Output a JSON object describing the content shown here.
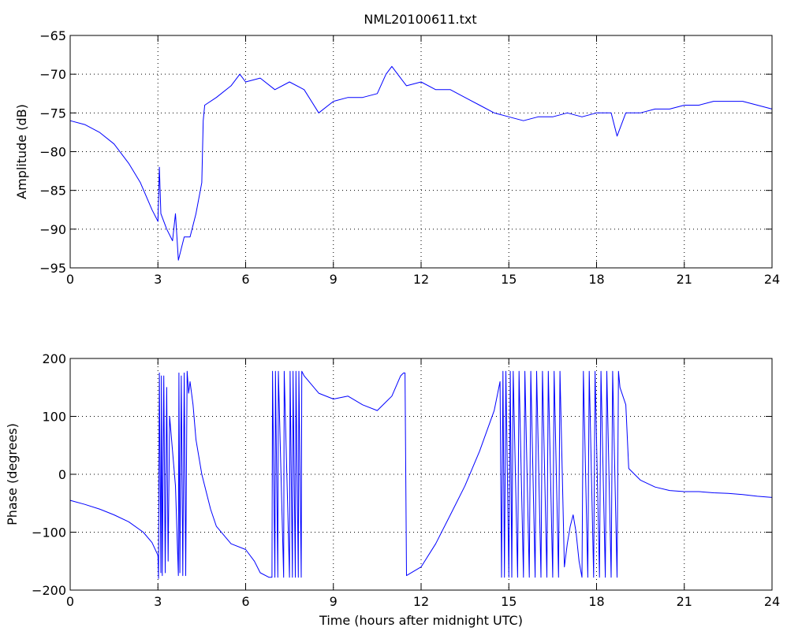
{
  "figure_title": "NML20100611.txt",
  "chart_data": [
    {
      "type": "line",
      "title": "NML20100611.txt",
      "xlabel": "",
      "ylabel": "Amplitude (dB)",
      "xlim": [
        0,
        24
      ],
      "ylim": [
        -95,
        -65
      ],
      "xticks": [
        0,
        3,
        6,
        9,
        12,
        15,
        18,
        21,
        24
      ],
      "yticks": [
        -95,
        -90,
        -85,
        -80,
        -75,
        -70,
        -65
      ],
      "x_tick_labels": [
        "0",
        "3",
        "6",
        "9",
        "12",
        "15",
        "18",
        "21",
        "24"
      ],
      "y_tick_labels": [
        "−95",
        "−90",
        "−85",
        "−80",
        "−75",
        "−70",
        "−65"
      ],
      "grid": true,
      "line_color": "#0000ff",
      "series": [
        {
          "x": [
            0,
            0.5,
            1.0,
            1.5,
            2.0,
            2.4,
            2.8,
            3.0,
            3.05,
            3.1,
            3.3,
            3.5,
            3.6,
            3.7,
            3.9,
            4.1,
            4.3,
            4.5,
            4.55,
            4.6,
            5.0,
            5.5,
            5.8,
            6.0,
            6.5,
            7.0,
            7.5,
            8.0,
            8.5,
            9.0,
            9.5,
            10.0,
            10.5,
            10.8,
            11.0,
            11.2,
            11.5,
            12.0,
            12.5,
            13.0,
            13.5,
            14.0,
            14.5,
            15.0,
            15.5,
            16.0,
            16.5,
            17.0,
            17.5,
            18.0,
            18.5,
            18.7,
            19.0,
            19.5,
            20.0,
            20.5,
            21.0,
            21.5,
            22.0,
            22.5,
            23.0,
            23.5,
            24.0
          ],
          "y": [
            -76,
            -76.5,
            -77.5,
            -79,
            -81.5,
            -84,
            -87.5,
            -89,
            -82,
            -88,
            -90,
            -91.5,
            -88,
            -94,
            -91,
            -91,
            -88,
            -84,
            -76,
            -74,
            -73,
            -71.5,
            -70,
            -71,
            -70.5,
            -72,
            -71,
            -72,
            -75,
            -73.5,
            -73,
            -73,
            -72.5,
            -70,
            -69,
            -70,
            -71.5,
            -71,
            -72,
            -72,
            -73,
            -74,
            -75,
            -75.5,
            -76,
            -75.5,
            -75.5,
            -75,
            -75.5,
            -75,
            -75,
            -78,
            -75,
            -75,
            -74.5,
            -74.5,
            -74,
            -74,
            -73.5,
            -73.5,
            -73.5,
            -74,
            -74.5
          ]
        }
      ]
    },
    {
      "type": "line",
      "title": "",
      "xlabel": "Time (hours after midnight UTC)",
      "ylabel": "Phase (degrees)",
      "xlim": [
        0,
        24
      ],
      "ylim": [
        -200,
        200
      ],
      "xticks": [
        0,
        3,
        6,
        9,
        12,
        15,
        18,
        21,
        24
      ],
      "yticks": [
        -200,
        -100,
        0,
        100,
        200
      ],
      "x_tick_labels": [
        "0",
        "3",
        "6",
        "9",
        "12",
        "15",
        "18",
        "21",
        "24"
      ],
      "y_tick_labels": [
        "−200",
        "−100",
        "0",
        "100",
        "200"
      ],
      "grid": true,
      "line_color": "#0000ff",
      "series": [
        {
          "x": [
            0,
            0.5,
            1.0,
            1.5,
            2.0,
            2.5,
            2.8,
            3.0,
            3.02,
            3.05,
            3.1,
            3.12,
            3.15,
            3.2,
            3.25,
            3.3,
            3.35,
            3.4,
            3.5,
            3.6,
            3.7,
            3.72,
            3.75,
            3.8,
            3.85,
            3.9,
            3.95,
            4.0,
            4.05,
            4.1,
            4.2,
            4.3,
            4.5,
            4.8,
            5.0,
            5.5,
            6.0,
            6.3,
            6.5,
            6.8,
            6.9,
            6.92,
            7.0,
            7.02,
            7.1,
            7.12,
            7.3,
            7.32,
            7.5,
            7.52,
            7.6,
            7.62,
            7.7,
            7.72,
            7.8,
            7.82,
            7.9,
            7.92,
            8.0,
            8.5,
            9.0,
            9.5,
            10.0,
            10.5,
            11.0,
            11.3,
            11.4,
            11.45,
            11.5,
            12.0,
            12.5,
            13.0,
            13.5,
            14.0,
            14.5,
            14.7,
            14.75,
            14.8,
            14.85,
            14.9,
            15.0,
            15.05,
            15.1,
            15.15,
            15.3,
            15.35,
            15.5,
            15.55,
            15.7,
            15.75,
            15.9,
            15.95,
            16.1,
            16.15,
            16.3,
            16.35,
            16.5,
            16.55,
            16.7,
            16.75,
            16.9,
            17.0,
            17.1,
            17.2,
            17.3,
            17.4,
            17.5,
            17.55,
            17.7,
            17.75,
            17.9,
            17.95,
            18.1,
            18.15,
            18.3,
            18.35,
            18.5,
            18.55,
            18.7,
            18.75,
            18.8,
            19.0,
            19.1,
            19.5,
            20.0,
            20.5,
            21.0,
            21.5,
            22.0,
            22.5,
            23.0,
            23.5,
            24.0
          ],
          "y": [
            -45,
            -52,
            -60,
            -70,
            -82,
            -100,
            -118,
            -140,
            -180,
            175,
            -170,
            170,
            -175,
            170,
            -170,
            150,
            -150,
            100,
            40,
            -20,
            -175,
            175,
            -170,
            170,
            -175,
            175,
            -175,
            178,
            140,
            160,
            120,
            60,
            0,
            -60,
            -90,
            -120,
            -130,
            -150,
            -170,
            -178,
            -178,
            178,
            -178,
            178,
            -178,
            178,
            -178,
            178,
            -178,
            178,
            -178,
            178,
            -178,
            178,
            -178,
            178,
            -178,
            178,
            170,
            140,
            130,
            135,
            120,
            110,
            135,
            170,
            175,
            175,
            -175,
            -160,
            -120,
            -70,
            -20,
            40,
            110,
            160,
            -178,
            178,
            -178,
            178,
            -178,
            178,
            -178,
            178,
            -178,
            178,
            -178,
            178,
            -178,
            178,
            -178,
            178,
            -178,
            178,
            -178,
            178,
            -178,
            178,
            -178,
            178,
            -160,
            -120,
            -90,
            -70,
            -100,
            -150,
            -178,
            178,
            -178,
            178,
            -178,
            178,
            -178,
            178,
            -178,
            178,
            -178,
            178,
            -178,
            178,
            150,
            120,
            10,
            -10,
            -22,
            -28,
            -30,
            -30,
            -32,
            -33,
            -35,
            -38,
            -40
          ]
        }
      ]
    }
  ]
}
